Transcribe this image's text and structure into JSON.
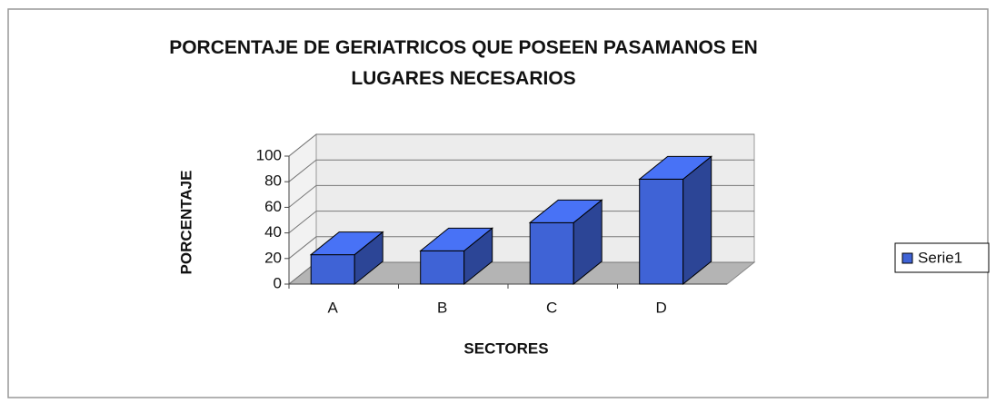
{
  "chart_data": {
    "type": "bar3d",
    "title": "PORCENTAJE DE GERIATRICOS QUE POSEEN PASAMANOS EN LUGARES NECESARIOS",
    "x_label": "SECTORES",
    "y_label": "PORCENTAJE",
    "categories": [
      "A",
      "B",
      "C",
      "D"
    ],
    "series": [
      {
        "name": "Serie1",
        "color": "#3f63d6",
        "values": [
          23,
          26,
          48,
          82
        ]
      }
    ],
    "ylim": [
      0,
      100
    ],
    "yticks": [
      0,
      20,
      40,
      60,
      80,
      100
    ],
    "grid": true,
    "legend": "right"
  }
}
